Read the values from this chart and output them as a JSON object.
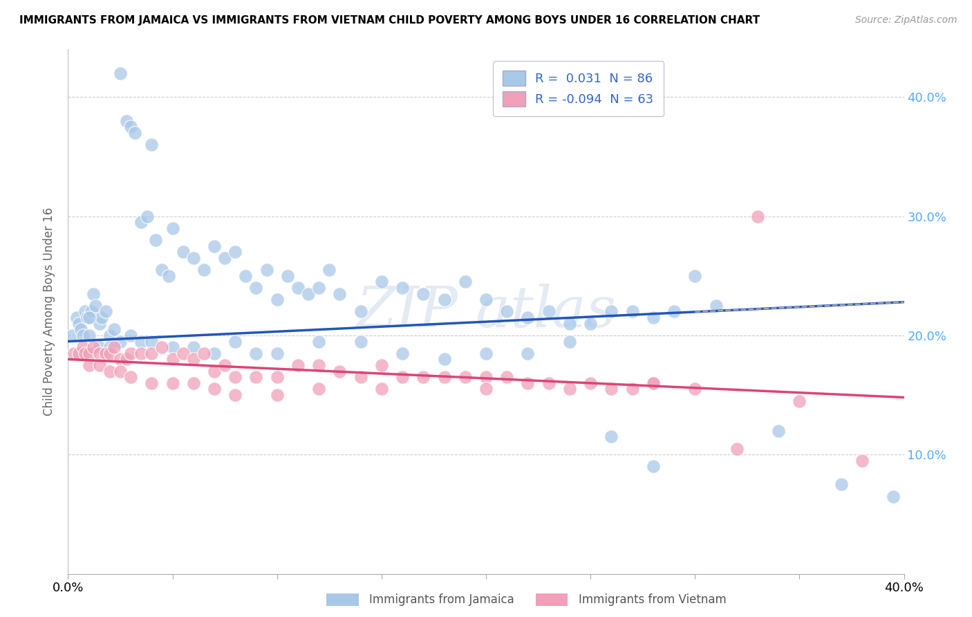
{
  "title": "IMMIGRANTS FROM JAMAICA VS IMMIGRANTS FROM VIETNAM CHILD POVERTY AMONG BOYS UNDER 16 CORRELATION CHART",
  "source": "Source: ZipAtlas.com",
  "ylabel": "Child Poverty Among Boys Under 16",
  "xlim": [
    0,
    0.4
  ],
  "ylim": [
    0,
    0.44
  ],
  "yticks": [
    0.1,
    0.2,
    0.3,
    0.4
  ],
  "ytick_labels": [
    "10.0%",
    "20.0%",
    "30.0%",
    "40.0%"
  ],
  "jamaica_color": "#a8c8e8",
  "vietnam_color": "#f0a0b8",
  "jamaica_line_color": "#2255bb",
  "vietnam_line_color": "#dd4477",
  "jamaica_line": [
    0.0,
    0.195,
    0.4,
    0.228
  ],
  "vietnam_line": [
    0.0,
    0.18,
    0.4,
    0.148
  ],
  "jamaica_N": 86,
  "vietnam_N": 63,
  "jamaica_R": "0.031",
  "vietnam_R": "-0.094",
  "jamaica_x": [
    0.002,
    0.004,
    0.005,
    0.006,
    0.007,
    0.008,
    0.009,
    0.01,
    0.011,
    0.012,
    0.013,
    0.015,
    0.016,
    0.018,
    0.02,
    0.022,
    0.025,
    0.028,
    0.03,
    0.032,
    0.035,
    0.038,
    0.04,
    0.042,
    0.045,
    0.048,
    0.05,
    0.055,
    0.06,
    0.065,
    0.07,
    0.075,
    0.08,
    0.085,
    0.09,
    0.095,
    0.1,
    0.105,
    0.11,
    0.115,
    0.12,
    0.125,
    0.13,
    0.14,
    0.15,
    0.16,
    0.17,
    0.18,
    0.19,
    0.2,
    0.21,
    0.22,
    0.23,
    0.24,
    0.25,
    0.26,
    0.27,
    0.28,
    0.29,
    0.3,
    0.01,
    0.015,
    0.02,
    0.025,
    0.03,
    0.035,
    0.04,
    0.05,
    0.06,
    0.07,
    0.08,
    0.09,
    0.1,
    0.12,
    0.14,
    0.16,
    0.18,
    0.2,
    0.22,
    0.24,
    0.26,
    0.28,
    0.31,
    0.34,
    0.37,
    0.395
  ],
  "jamaica_y": [
    0.2,
    0.215,
    0.21,
    0.205,
    0.2,
    0.22,
    0.215,
    0.2,
    0.22,
    0.235,
    0.225,
    0.21,
    0.215,
    0.22,
    0.2,
    0.205,
    0.42,
    0.38,
    0.375,
    0.37,
    0.295,
    0.3,
    0.36,
    0.28,
    0.255,
    0.25,
    0.29,
    0.27,
    0.265,
    0.255,
    0.275,
    0.265,
    0.27,
    0.25,
    0.24,
    0.255,
    0.23,
    0.25,
    0.24,
    0.235,
    0.24,
    0.255,
    0.235,
    0.22,
    0.245,
    0.24,
    0.235,
    0.23,
    0.245,
    0.23,
    0.22,
    0.215,
    0.22,
    0.21,
    0.21,
    0.22,
    0.22,
    0.215,
    0.22,
    0.25,
    0.215,
    0.19,
    0.19,
    0.195,
    0.2,
    0.195,
    0.195,
    0.19,
    0.19,
    0.185,
    0.195,
    0.185,
    0.185,
    0.195,
    0.195,
    0.185,
    0.18,
    0.185,
    0.185,
    0.195,
    0.115,
    0.09,
    0.225,
    0.12,
    0.075,
    0.065
  ],
  "vietnam_x": [
    0.003,
    0.005,
    0.007,
    0.008,
    0.01,
    0.012,
    0.015,
    0.018,
    0.02,
    0.022,
    0.025,
    0.028,
    0.03,
    0.035,
    0.04,
    0.045,
    0.05,
    0.055,
    0.06,
    0.065,
    0.07,
    0.075,
    0.08,
    0.09,
    0.1,
    0.11,
    0.12,
    0.13,
    0.14,
    0.15,
    0.16,
    0.17,
    0.18,
    0.19,
    0.2,
    0.21,
    0.22,
    0.23,
    0.24,
    0.25,
    0.26,
    0.27,
    0.28,
    0.3,
    0.32,
    0.35,
    0.01,
    0.015,
    0.02,
    0.025,
    0.03,
    0.04,
    0.05,
    0.06,
    0.07,
    0.08,
    0.1,
    0.12,
    0.15,
    0.2,
    0.28,
    0.33,
    0.38
  ],
  "vietnam_y": [
    0.185,
    0.185,
    0.19,
    0.185,
    0.185,
    0.19,
    0.185,
    0.185,
    0.185,
    0.19,
    0.18,
    0.18,
    0.185,
    0.185,
    0.185,
    0.19,
    0.18,
    0.185,
    0.18,
    0.185,
    0.17,
    0.175,
    0.165,
    0.165,
    0.165,
    0.175,
    0.175,
    0.17,
    0.165,
    0.175,
    0.165,
    0.165,
    0.165,
    0.165,
    0.165,
    0.165,
    0.16,
    0.16,
    0.155,
    0.16,
    0.155,
    0.155,
    0.16,
    0.155,
    0.105,
    0.145,
    0.175,
    0.175,
    0.17,
    0.17,
    0.165,
    0.16,
    0.16,
    0.16,
    0.155,
    0.15,
    0.15,
    0.155,
    0.155,
    0.155,
    0.16,
    0.3,
    0.095
  ]
}
